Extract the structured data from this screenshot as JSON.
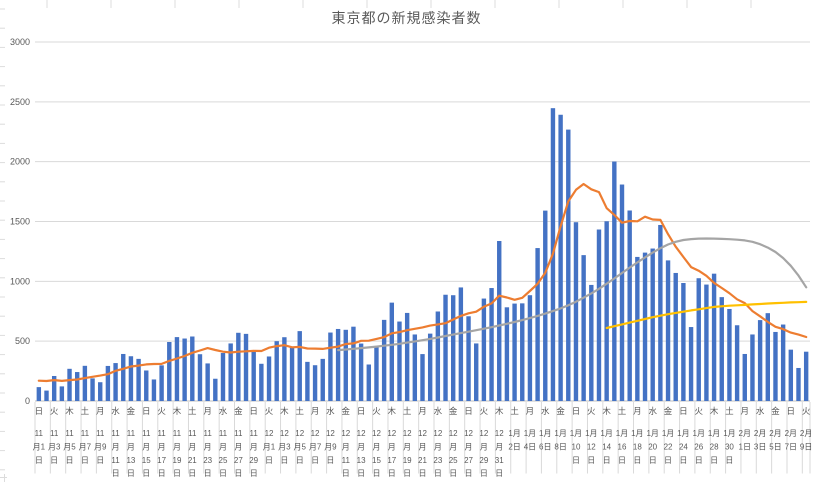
{
  "chart_data": {
    "type": "combo-bar-line",
    "title": "東京都の新規感染者数",
    "legend": "none",
    "grid": true,
    "y_axis": {
      "min": 0,
      "max": 3000,
      "step": 500,
      "tick_labels": [
        "0",
        "500",
        "1000",
        "1500",
        "2000",
        "2500",
        "3000"
      ]
    },
    "x_axis": {
      "label_interval_days": 2,
      "first_label": "日 11月1日",
      "last_label": "火 2月9日"
    },
    "colors": {
      "bar": "#4472C4",
      "orange": "#ED7D31",
      "gray": "#A5A5A5",
      "yellow": "#FFC000",
      "grid": "#D9D9D9",
      "axis": "#BFBFBF",
      "text": "#595959",
      "sheet_line": "#DCDCDC"
    },
    "dates": [
      "11月1日",
      "11月2日",
      "11月3日",
      "11月4日",
      "11月5日",
      "11月6日",
      "11月7日",
      "11月8日",
      "11月9日",
      "11月10日",
      "11月11日",
      "11月12日",
      "11月13日",
      "11月14日",
      "11月15日",
      "11月16日",
      "11月17日",
      "11月18日",
      "11月19日",
      "11月20日",
      "11月21日",
      "11月22日",
      "11月23日",
      "11月24日",
      "11月25日",
      "11月26日",
      "11月27日",
      "11月28日",
      "11月29日",
      "11月30日",
      "12月1日",
      "12月2日",
      "12月3日",
      "12月4日",
      "12月5日",
      "12月6日",
      "12月7日",
      "12月8日",
      "12月9日",
      "12月10日",
      "12月11日",
      "12月12日",
      "12月13日",
      "12月14日",
      "12月15日",
      "12月16日",
      "12月17日",
      "12月18日",
      "12月19日",
      "12月20日",
      "12月21日",
      "12月22日",
      "12月23日",
      "12月24日",
      "12月25日",
      "12月26日",
      "12月27日",
      "12月28日",
      "12月29日",
      "12月30日",
      "12月31日",
      "1月1日",
      "1月2日",
      "1月3日",
      "1月4日",
      "1月5日",
      "1月6日",
      "1月7日",
      "1月8日",
      "1月9日",
      "1月10日",
      "1月11日",
      "1月12日",
      "1月13日",
      "1月14日",
      "1月15日",
      "1月16日",
      "1月17日",
      "1月18日",
      "1月19日",
      "1月20日",
      "1月21日",
      "1月22日",
      "1月23日",
      "1月24日",
      "1月25日",
      "1月26日",
      "1月27日",
      "1月28日",
      "1月29日",
      "1月30日",
      "1月31日",
      "2月1日",
      "2月2日",
      "2月3日",
      "2月4日",
      "2月5日",
      "2月6日",
      "2月7日",
      "2月8日",
      "2月9日"
    ],
    "weekdays": [
      "日",
      "月",
      "火",
      "水",
      "木",
      "金",
      "土",
      "日",
      "月",
      "火",
      "水",
      "木",
      "金",
      "土",
      "日",
      "月",
      "火",
      "水",
      "木",
      "金",
      "土",
      "日",
      "月",
      "火",
      "水",
      "木",
      "金",
      "土",
      "日",
      "月",
      "火",
      "水",
      "木",
      "金",
      "土",
      "日",
      "月",
      "火",
      "水",
      "木",
      "金",
      "土",
      "日",
      "月",
      "火",
      "水",
      "木",
      "金",
      "土",
      "日",
      "月",
      "火",
      "水",
      "木",
      "金",
      "土",
      "日",
      "月",
      "火",
      "水",
      "木",
      "金",
      "土",
      "日",
      "月",
      "火",
      "水",
      "木",
      "金",
      "土",
      "日",
      "月",
      "火",
      "水",
      "木",
      "金",
      "土",
      "日",
      "月",
      "火",
      "水",
      "木",
      "金",
      "土",
      "日",
      "月",
      "火",
      "水",
      "木",
      "金",
      "土",
      "日",
      "月",
      "火",
      "水",
      "木",
      "金",
      "土",
      "日",
      "月",
      "火"
    ],
    "series": [
      {
        "name": "daily-new-cases-bars",
        "type": "bar",
        "color": "#4472C4",
        "start_index": 0,
        "values": [
          116,
          87,
          209,
          122,
          269,
          242,
          294,
          189,
          157,
          293,
          317,
          393,
          374,
          352,
          255,
          180,
          298,
          493,
          534,
          522,
          539,
          391,
          314,
          186,
          401,
          481,
          570,
          561,
          418,
          311,
          372,
          500,
          533,
          449,
          584,
          327,
          299,
          352,
          572,
          602,
          595,
          621,
          480,
          305,
          460,
          678,
          822,
          664,
          736,
          556,
          392,
          563,
          748,
          888,
          884,
          949,
          708,
          481,
          856,
          944,
          1337,
          783,
          814,
          816,
          884,
          1278,
          1591,
          2447,
          2392,
          2268,
          1494,
          1219,
          970,
          1433,
          1502,
          2001,
          1809,
          1592,
          1204,
          1240,
          1274,
          1471,
          1175,
          1070,
          986,
          618,
          1026,
          973,
          1064,
          868,
          769,
          633,
          393,
          556,
          676,
          734,
          577,
          639,
          429,
          276,
          412
        ]
      },
      {
        "name": "orange-7day-average-line",
        "type": "line",
        "color": "#ED7D31",
        "start_index": 0,
        "values": [
          170,
          167,
          175,
          168,
          175,
          180,
          191,
          202,
          212,
          224,
          252,
          269,
          288,
          296,
          306,
          309,
          310,
          335,
          355,
          376,
          403,
          422,
          442,
          426,
          412,
          405,
          412,
          415,
          419,
          418,
          445,
          459,
          466,
          449,
          452,
          439,
          438,
          435,
          445,
          455,
          476,
          481,
          503,
          504,
          519,
          534,
          566,
          576,
          592,
          603,
          615,
          630,
          640,
          650,
          681,
          711,
          733,
          746,
          788,
          816,
          880,
          865,
          846,
          862,
          919,
          979,
          1072,
          1230,
          1460,
          1668,
          1765,
          1813,
          1769,
          1746,
          1611,
          1555,
          1490,
          1504,
          1502,
          1540,
          1517,
          1513,
          1395,
          1289,
          1203,
          1119,
          1089,
          1046,
          987,
          944,
          901,
          850,
          818,
          751,
          708,
          661,
          620,
          601,
          572,
          555,
          535
        ]
      },
      {
        "name": "gray-line",
        "type": "line",
        "color": "#A5A5A5",
        "start_index": 39,
        "values": [
          425,
          430,
          436,
          442,
          448,
          455,
          462,
          470,
          478,
          488,
          498,
          508,
          519,
          531,
          543,
          555,
          567,
          579,
          592,
          604,
          617,
          631,
          645,
          660,
          676,
          693,
          711,
          730,
          751,
          774,
          800,
          830,
          863,
          899,
          938,
          980,
          1024,
          1070,
          1115,
          1158,
          1200,
          1240,
          1277,
          1308,
          1330,
          1345,
          1353,
          1357,
          1358,
          1357,
          1355,
          1352,
          1348,
          1342,
          1330,
          1310,
          1282,
          1245,
          1195,
          1130,
          1048,
          950
        ]
      },
      {
        "name": "yellow-line",
        "type": "line",
        "color": "#FFC000",
        "start_index": 74,
        "values": [
          610,
          625,
          640,
          655,
          670,
          685,
          700,
          713,
          725,
          736,
          746,
          757,
          766,
          776,
          786,
          791,
          796,
          800,
          803,
          807,
          811,
          815,
          818,
          821,
          824,
          826,
          828
        ]
      }
    ]
  }
}
